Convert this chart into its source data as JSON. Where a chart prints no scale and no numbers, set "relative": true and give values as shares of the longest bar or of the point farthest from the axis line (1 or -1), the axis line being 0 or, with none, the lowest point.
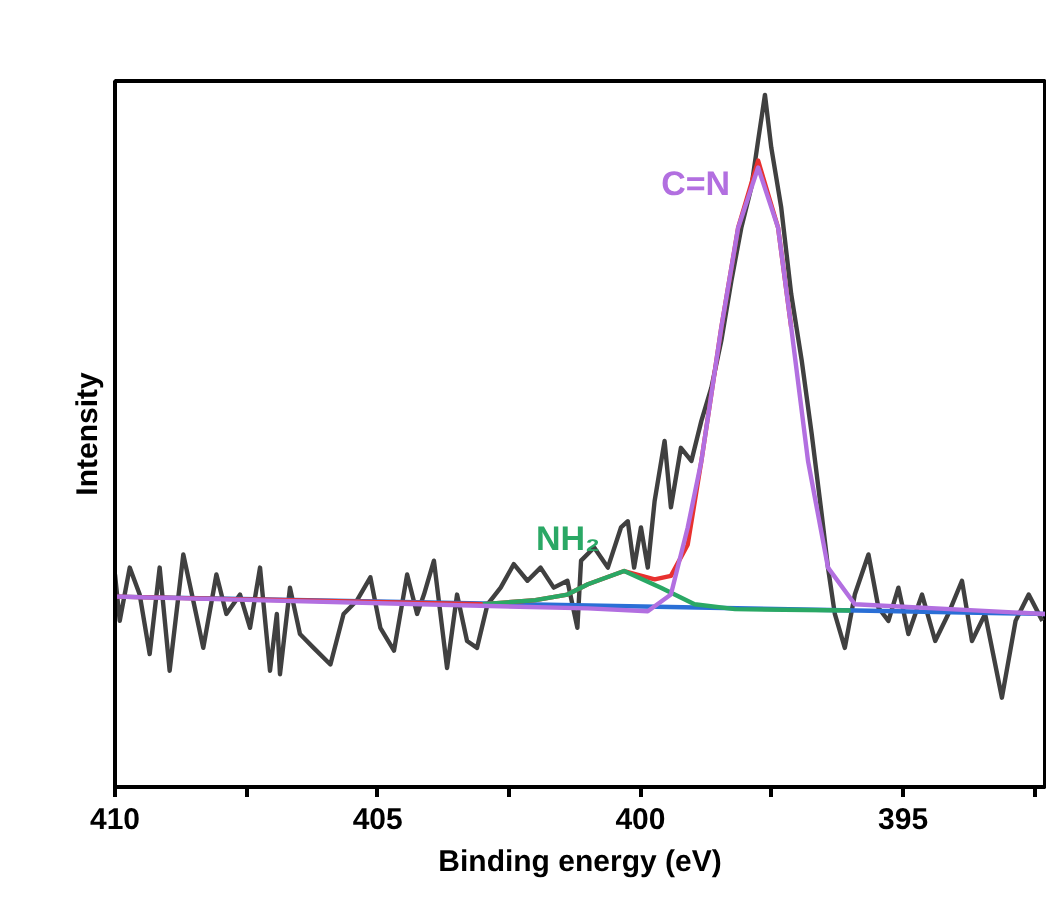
{
  "chart_data": {
    "type": "line",
    "xlabel": "Binding energy (eV)",
    "ylabel": "Intensity",
    "relative": true,
    "xlim": [
      410,
      392.3
    ],
    "xticks": [
      410,
      {
        "value": 407.5,
        "label": null
      },
      405,
      {
        "value": 402.5,
        "label": null
      },
      400,
      {
        "value": 397.5,
        "label": null
      },
      395,
      {
        "value": 392.5,
        "label": null
      }
    ],
    "legend": false,
    "grid": false,
    "series": [
      {
        "color": "#404040",
        "x": [
          410.0,
          409.91,
          409.72,
          409.53,
          409.34,
          409.15,
          408.96,
          408.7,
          408.51,
          408.32,
          408.07,
          407.88,
          407.62,
          407.43,
          407.24,
          407.05,
          406.92,
          406.86,
          406.67,
          406.48,
          406.22,
          405.9,
          405.65,
          405.4,
          405.14,
          404.95,
          404.69,
          404.44,
          404.25,
          404.12,
          403.93,
          403.68,
          403.49,
          403.3,
          403.11,
          402.91,
          402.66,
          402.41,
          402.15,
          401.9,
          401.65,
          401.39,
          401.2,
          401.13,
          400.88,
          400.62,
          400.37,
          400.24,
          400.12,
          399.99,
          399.86,
          399.73,
          399.54,
          399.42,
          399.23,
          399.03,
          398.84,
          398.65,
          398.46,
          398.27,
          398.08,
          397.89,
          397.76,
          397.63,
          397.51,
          397.32,
          397.13,
          396.93,
          396.74,
          396.55,
          396.43,
          396.3,
          396.11,
          395.92,
          395.66,
          395.47,
          395.28,
          395.09,
          394.9,
          394.64,
          394.39,
          394.14,
          393.88,
          393.69,
          393.44,
          393.12,
          392.86,
          392.61,
          392.35
        ],
        "values": [
          0.307,
          0.24,
          0.317,
          0.278,
          0.192,
          0.317,
          0.168,
          0.336,
          0.269,
          0.201,
          0.307,
          0.25,
          0.278,
          0.23,
          0.317,
          0.168,
          0.25,
          0.163,
          0.288,
          0.221,
          0.201,
          0.177,
          0.25,
          0.269,
          0.303,
          0.23,
          0.197,
          0.307,
          0.25,
          0.278,
          0.327,
          0.172,
          0.278,
          0.211,
          0.201,
          0.264,
          0.288,
          0.322,
          0.298,
          0.317,
          0.288,
          0.298,
          0.23,
          0.327,
          0.346,
          0.317,
          0.375,
          0.384,
          0.317,
          0.375,
          0.317,
          0.413,
          0.5,
          0.404,
          0.49,
          0.471,
          0.529,
          0.577,
          0.645,
          0.731,
          0.808,
          0.866,
          0.934,
          1.0,
          0.924,
          0.837,
          0.712,
          0.616,
          0.51,
          0.394,
          0.317,
          0.25,
          0.201,
          0.278,
          0.336,
          0.259,
          0.24,
          0.288,
          0.221,
          0.278,
          0.211,
          0.25,
          0.298,
          0.211,
          0.25,
          0.129,
          0.24,
          0.278,
          0.24
        ]
      },
      {
        "color": "#2a6fd6",
        "x": [
          410,
          392.3
        ],
        "values": [
          0.275,
          0.25
        ]
      },
      {
        "color": "#e8312f",
        "x": [
          410,
          403.0,
          402.0,
          401.39,
          401.0,
          400.31,
          399.73,
          399.42,
          399.1,
          398.84,
          398.46,
          398.14,
          397.76,
          397.38,
          397.13
        ],
        "values": [
          0.275,
          0.264,
          0.27,
          0.278,
          0.293,
          0.312,
          0.3,
          0.305,
          0.35,
          0.471,
          0.664,
          0.808,
          0.905,
          0.808,
          0.664
        ]
      },
      {
        "name": "NH₂",
        "color": "#2aa865",
        "x": [
          403.0,
          402.0,
          401.39,
          401.0,
          400.31,
          399.61,
          398.97,
          398.2,
          396.0
        ],
        "values": [
          0.264,
          0.27,
          0.278,
          0.293,
          0.312,
          0.288,
          0.264,
          0.257,
          0.255
        ]
      },
      {
        "name": "C=N",
        "color": "#b26fe0",
        "x": [
          410,
          401.0,
          399.86,
          399.42,
          399.1,
          398.84,
          398.46,
          398.14,
          397.76,
          397.38,
          397.13,
          396.81,
          396.43,
          395.92,
          392.3
        ],
        "values": [
          0.275,
          0.258,
          0.254,
          0.278,
          0.375,
          0.471,
          0.664,
          0.808,
          0.895,
          0.808,
          0.664,
          0.471,
          0.317,
          0.264,
          0.25
        ]
      }
    ]
  }
}
